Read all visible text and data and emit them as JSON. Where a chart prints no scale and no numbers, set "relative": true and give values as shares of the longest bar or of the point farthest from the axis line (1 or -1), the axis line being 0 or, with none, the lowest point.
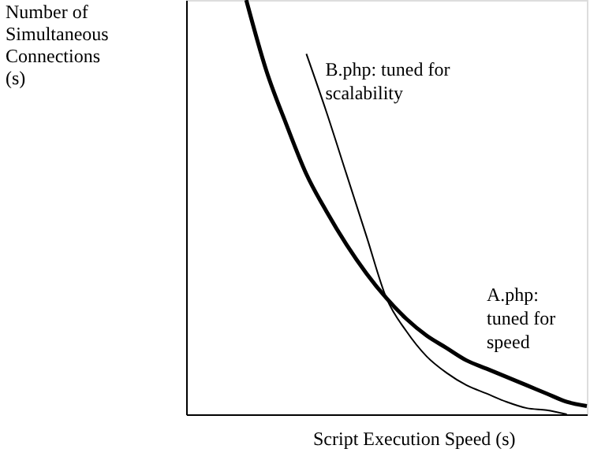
{
  "chart_data": {
    "type": "line",
    "relative": true,
    "xlabel": "Script Execution Speed (s)",
    "ylabel": "Number of Simultaneous Connections (s)",
    "tick_labels": false,
    "grid": false,
    "marker": "none",
    "line_style": "solid",
    "categories": [
      null,
      null,
      null,
      null,
      null,
      null,
      null,
      null,
      null,
      null,
      null,
      null,
      null,
      null,
      null,
      null,
      null,
      null,
      null,
      null,
      null
    ],
    "series": [
      {
        "name": "A.php: tuned for speed",
        "color": "#000000",
        "values": [
          null,
          null,
          null,
          1.0,
          0.83,
          0.7,
          0.58,
          0.49,
          0.41,
          0.34,
          0.28,
          0.23,
          0.19,
          0.16,
          0.13,
          0.11,
          0.09,
          0.07,
          0.05,
          0.03,
          0.02
        ]
      },
      {
        "name": "B.php: tuned for scalability",
        "color": "#000000",
        "values": [
          null,
          null,
          null,
          null,
          null,
          null,
          0.87,
          0.73,
          0.58,
          0.43,
          0.28,
          0.2,
          0.14,
          0.1,
          0.07,
          0.05,
          0.03,
          0.015,
          0.01,
          0,
          null
        ]
      }
    ]
  }
}
